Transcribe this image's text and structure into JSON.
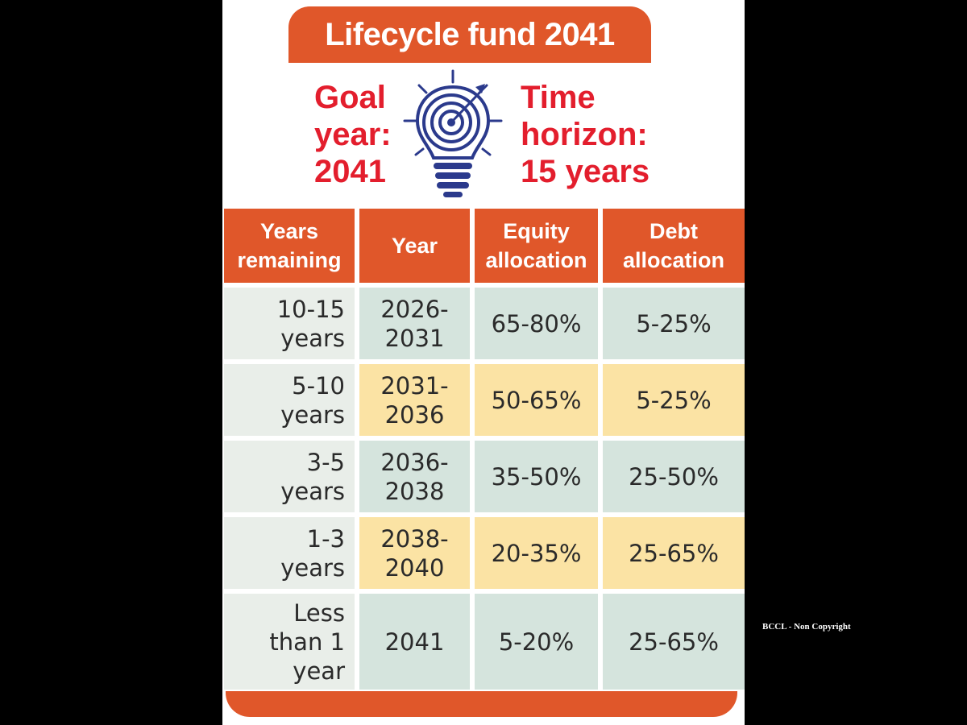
{
  "title": "Lifecycle fund 2041",
  "goal": {
    "line1": "Goal",
    "line2": "year:",
    "line3": "2041"
  },
  "horizon": {
    "line1": "Time",
    "line2": "horizon:",
    "line3": "15 years"
  },
  "icon": "lightbulb-target-icon",
  "colors": {
    "accent": "#e0572a",
    "headline_red": "#e31e2d",
    "row_green": "#d5e4dd",
    "row_yellow": "#fbe3a4",
    "first_col": "#e9eee9"
  },
  "table": {
    "headers": [
      "Years\nremaining",
      "Year",
      "Equity\nallocation",
      "Debt\nallocation"
    ],
    "rows": [
      {
        "remaining": "10-15\nyears",
        "year": "2026-\n2031",
        "equity": "65-80%",
        "debt": "5-25%"
      },
      {
        "remaining": "5-10\nyears",
        "year": "2031-\n2036",
        "equity": "50-65%",
        "debt": "5-25%"
      },
      {
        "remaining": "3-5\nyears",
        "year": "2036-\n2038",
        "equity": "35-50%",
        "debt": "25-50%"
      },
      {
        "remaining": "1-3\nyears",
        "year": "2038-\n2040",
        "equity": "20-35%",
        "debt": "25-65%"
      },
      {
        "remaining": "Less\nthan 1\nyear",
        "year": "2041",
        "equity": "5-20%",
        "debt": "25-65%"
      }
    ]
  },
  "credit": "BCCL - Non Copyright"
}
